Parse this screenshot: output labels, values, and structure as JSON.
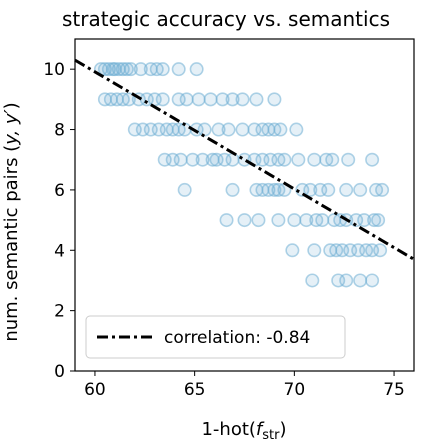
{
  "chart_data": {
    "type": "scatter",
    "title": "strategic accuracy vs. semantics",
    "xlabel_main": "1-hot(",
    "xlabel_var": "f",
    "xlabel_sub": "str",
    "xlabel_close": ")",
    "ylabel_main": "num. semantic pairs (",
    "ylabel_vars": "y, y′",
    "ylabel_close": ")",
    "xlim": [
      59,
      76
    ],
    "ylim": [
      0,
      11
    ],
    "x_ticks": [
      60,
      65,
      70,
      75
    ],
    "y_ticks": [
      0,
      2,
      4,
      6,
      8,
      10
    ],
    "grid": false,
    "legend_position": "bottom-left",
    "colors": {
      "points": "#6faed3",
      "line": "#000000",
      "axis": "#000000"
    },
    "series": [
      {
        "kind": "scatter",
        "points": [
          [
            60.3,
            10
          ],
          [
            60.5,
            10
          ],
          [
            60.7,
            10
          ],
          [
            60.9,
            10
          ],
          [
            61.0,
            10
          ],
          [
            61.2,
            10
          ],
          [
            61.4,
            10
          ],
          [
            61.6,
            10
          ],
          [
            61.8,
            10
          ],
          [
            62.3,
            10
          ],
          [
            62.8,
            10
          ],
          [
            63.1,
            10
          ],
          [
            63.4,
            10
          ],
          [
            64.2,
            10
          ],
          [
            65.1,
            10
          ],
          [
            60.5,
            9
          ],
          [
            60.8,
            9
          ],
          [
            61.1,
            9
          ],
          [
            61.4,
            9
          ],
          [
            61.7,
            9
          ],
          [
            62.2,
            9
          ],
          [
            62.6,
            9
          ],
          [
            63.0,
            9
          ],
          [
            63.4,
            9
          ],
          [
            64.2,
            9
          ],
          [
            64.6,
            9
          ],
          [
            65.2,
            9
          ],
          [
            65.8,
            9
          ],
          [
            66.4,
            9
          ],
          [
            66.9,
            9
          ],
          [
            67.4,
            9
          ],
          [
            68.1,
            9
          ],
          [
            69.0,
            9
          ],
          [
            62.0,
            8
          ],
          [
            62.4,
            8
          ],
          [
            62.8,
            8
          ],
          [
            63.2,
            8
          ],
          [
            63.6,
            8
          ],
          [
            63.9,
            8
          ],
          [
            64.2,
            8
          ],
          [
            64.5,
            8
          ],
          [
            65.1,
            8
          ],
          [
            65.5,
            8
          ],
          [
            66.2,
            8
          ],
          [
            66.7,
            8
          ],
          [
            67.4,
            8
          ],
          [
            68.0,
            8
          ],
          [
            68.4,
            8
          ],
          [
            68.7,
            8
          ],
          [
            69.0,
            8
          ],
          [
            69.3,
            8
          ],
          [
            70.1,
            8
          ],
          [
            63.5,
            7
          ],
          [
            63.9,
            7
          ],
          [
            64.3,
            7
          ],
          [
            64.9,
            7
          ],
          [
            65.4,
            7
          ],
          [
            65.9,
            7
          ],
          [
            66.1,
            7
          ],
          [
            66.5,
            7
          ],
          [
            66.9,
            7
          ],
          [
            67.5,
            7
          ],
          [
            68.0,
            7
          ],
          [
            68.4,
            7
          ],
          [
            68.8,
            7
          ],
          [
            69.2,
            7
          ],
          [
            69.5,
            7
          ],
          [
            70.2,
            7
          ],
          [
            71.0,
            7
          ],
          [
            71.6,
            7
          ],
          [
            71.9,
            7
          ],
          [
            72.7,
            7
          ],
          [
            73.9,
            7
          ],
          [
            64.5,
            6
          ],
          [
            66.9,
            6
          ],
          [
            68.1,
            6
          ],
          [
            68.4,
            6
          ],
          [
            68.7,
            6
          ],
          [
            69.0,
            6
          ],
          [
            69.2,
            6
          ],
          [
            69.5,
            6
          ],
          [
            70.4,
            6
          ],
          [
            70.8,
            6
          ],
          [
            71.3,
            6
          ],
          [
            71.7,
            6
          ],
          [
            72.6,
            6
          ],
          [
            73.3,
            6
          ],
          [
            74.1,
            6
          ],
          [
            74.4,
            6
          ],
          [
            66.6,
            5
          ],
          [
            67.5,
            5
          ],
          [
            68.2,
            5
          ],
          [
            69.2,
            5
          ],
          [
            70.0,
            5
          ],
          [
            70.6,
            5
          ],
          [
            71.1,
            5
          ],
          [
            71.4,
            5
          ],
          [
            72.0,
            5
          ],
          [
            72.3,
            5
          ],
          [
            72.6,
            5
          ],
          [
            73.1,
            5
          ],
          [
            73.5,
            5
          ],
          [
            74.0,
            5
          ],
          [
            74.2,
            5
          ],
          [
            69.9,
            4
          ],
          [
            71.0,
            4
          ],
          [
            71.8,
            4
          ],
          [
            72.1,
            4
          ],
          [
            72.4,
            4
          ],
          [
            72.8,
            4
          ],
          [
            73.2,
            4
          ],
          [
            73.6,
            4
          ],
          [
            73.9,
            4
          ],
          [
            74.3,
            4
          ],
          [
            70.9,
            3
          ],
          [
            72.2,
            3
          ],
          [
            72.6,
            3
          ],
          [
            73.3,
            3
          ],
          [
            73.9,
            3
          ]
        ]
      },
      {
        "kind": "line",
        "name": "correlation: -0.84",
        "style": "dash-dot",
        "from": [
          59,
          10.3
        ],
        "to": [
          76,
          3.7
        ]
      }
    ]
  }
}
